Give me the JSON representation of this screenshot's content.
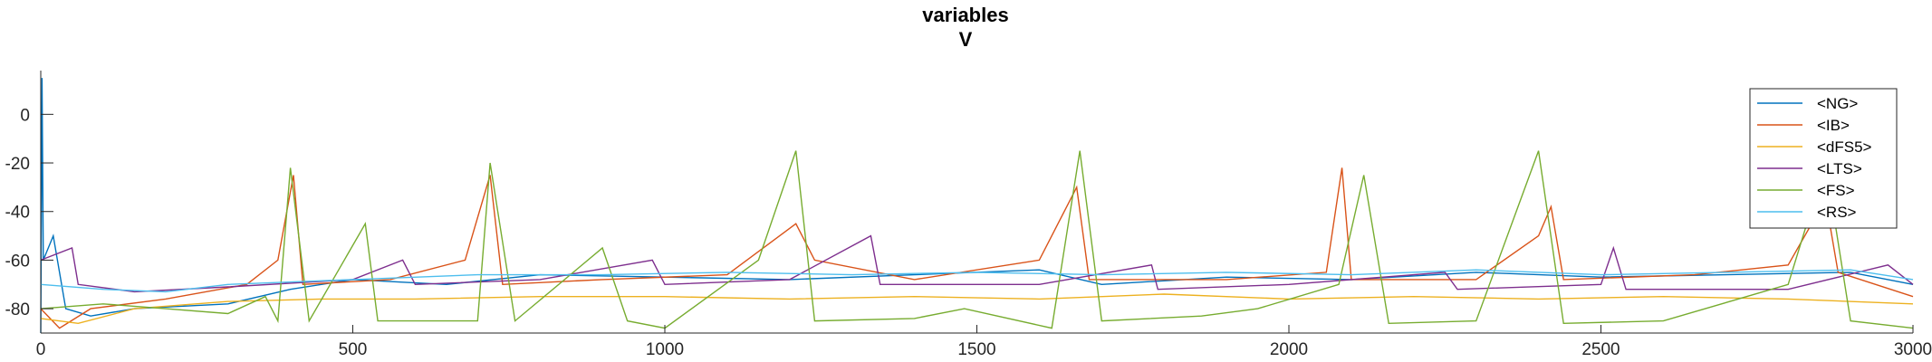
{
  "chart_data": {
    "type": "line",
    "title": "variables",
    "subtitle": "V",
    "xlabel": "",
    "ylabel": "",
    "xlim": [
      0,
      3000
    ],
    "ylim": [
      -90,
      18
    ],
    "x_ticks": [
      0,
      500,
      1000,
      1500,
      2000,
      2500,
      3000
    ],
    "y_ticks": [
      0,
      -20,
      -40,
      -60,
      -80
    ],
    "grid": false,
    "legend_position": "top-right",
    "series": [
      {
        "name": "<NG>",
        "color": "#0072BD",
        "points": [
          [
            0,
            -90
          ],
          [
            2,
            15
          ],
          [
            4,
            -60
          ],
          [
            20,
            -50
          ],
          [
            40,
            -80
          ],
          [
            80,
            -83
          ],
          [
            150,
            -80
          ],
          [
            300,
            -78
          ],
          [
            400,
            -72
          ],
          [
            500,
            -68
          ],
          [
            650,
            -70
          ],
          [
            800,
            -66
          ],
          [
            1000,
            -67
          ],
          [
            1200,
            -68
          ],
          [
            1400,
            -66
          ],
          [
            1600,
            -64
          ],
          [
            1700,
            -70
          ],
          [
            1900,
            -67
          ],
          [
            2100,
            -68
          ],
          [
            2300,
            -65
          ],
          [
            2500,
            -67
          ],
          [
            2700,
            -66
          ],
          [
            2900,
            -65
          ],
          [
            3000,
            -70
          ]
        ]
      },
      {
        "name": "<IB>",
        "color": "#D95319",
        "points": [
          [
            0,
            -80
          ],
          [
            30,
            -88
          ],
          [
            80,
            -80
          ],
          [
            200,
            -76
          ],
          [
            330,
            -70
          ],
          [
            380,
            -60
          ],
          [
            405,
            -25
          ],
          [
            420,
            -70
          ],
          [
            560,
            -68
          ],
          [
            680,
            -60
          ],
          [
            720,
            -25
          ],
          [
            740,
            -70
          ],
          [
            900,
            -68
          ],
          [
            1100,
            -66
          ],
          [
            1210,
            -45
          ],
          [
            1240,
            -60
          ],
          [
            1400,
            -68
          ],
          [
            1600,
            -60
          ],
          [
            1660,
            -30
          ],
          [
            1680,
            -68
          ],
          [
            1900,
            -68
          ],
          [
            2060,
            -65
          ],
          [
            2085,
            -22
          ],
          [
            2100,
            -68
          ],
          [
            2300,
            -68
          ],
          [
            2400,
            -50
          ],
          [
            2420,
            -38
          ],
          [
            2440,
            -68
          ],
          [
            2650,
            -66
          ],
          [
            2800,
            -62
          ],
          [
            2860,
            -35
          ],
          [
            2880,
            -65
          ],
          [
            3000,
            -75
          ]
        ]
      },
      {
        "name": "<dFS5>",
        "color": "#EDB120",
        "points": [
          [
            0,
            -84
          ],
          [
            60,
            -86
          ],
          [
            150,
            -80
          ],
          [
            300,
            -77
          ],
          [
            450,
            -76
          ],
          [
            600,
            -76
          ],
          [
            800,
            -75
          ],
          [
            1000,
            -75
          ],
          [
            1200,
            -76
          ],
          [
            1400,
            -75
          ],
          [
            1600,
            -76
          ],
          [
            1800,
            -74
          ],
          [
            2000,
            -76
          ],
          [
            2200,
            -75
          ],
          [
            2400,
            -76
          ],
          [
            2600,
            -75
          ],
          [
            2800,
            -76
          ],
          [
            3000,
            -78
          ]
        ]
      },
      {
        "name": "<LTS>",
        "color": "#7E2F8E",
        "points": [
          [
            0,
            -60
          ],
          [
            50,
            -55
          ],
          [
            60,
            -70
          ],
          [
            150,
            -73
          ],
          [
            300,
            -71
          ],
          [
            500,
            -68
          ],
          [
            580,
            -60
          ],
          [
            600,
            -70
          ],
          [
            800,
            -68
          ],
          [
            980,
            -60
          ],
          [
            1000,
            -70
          ],
          [
            1200,
            -68
          ],
          [
            1330,
            -50
          ],
          [
            1345,
            -70
          ],
          [
            1600,
            -70
          ],
          [
            1780,
            -62
          ],
          [
            1790,
            -72
          ],
          [
            2000,
            -70
          ],
          [
            2250,
            -65
          ],
          [
            2270,
            -72
          ],
          [
            2500,
            -70
          ],
          [
            2520,
            -55
          ],
          [
            2540,
            -72
          ],
          [
            2800,
            -72
          ],
          [
            2960,
            -62
          ],
          [
            3000,
            -70
          ]
        ]
      },
      {
        "name": "<FS>",
        "color": "#77AC30",
        "points": [
          [
            0,
            -80
          ],
          [
            100,
            -78
          ],
          [
            200,
            -80
          ],
          [
            300,
            -82
          ],
          [
            360,
            -75
          ],
          [
            380,
            -85
          ],
          [
            400,
            -22
          ],
          [
            430,
            -85
          ],
          [
            520,
            -45
          ],
          [
            540,
            -85
          ],
          [
            700,
            -85
          ],
          [
            720,
            -20
          ],
          [
            760,
            -85
          ],
          [
            900,
            -55
          ],
          [
            940,
            -85
          ],
          [
            1000,
            -88
          ],
          [
            1150,
            -60
          ],
          [
            1210,
            -15
          ],
          [
            1240,
            -85
          ],
          [
            1400,
            -84
          ],
          [
            1480,
            -80
          ],
          [
            1620,
            -88
          ],
          [
            1665,
            -15
          ],
          [
            1700,
            -85
          ],
          [
            1860,
            -83
          ],
          [
            1950,
            -80
          ],
          [
            2080,
            -70
          ],
          [
            2120,
            -25
          ],
          [
            2160,
            -86
          ],
          [
            2300,
            -85
          ],
          [
            2400,
            -15
          ],
          [
            2440,
            -86
          ],
          [
            2600,
            -85
          ],
          [
            2800,
            -70
          ],
          [
            2860,
            -20
          ],
          [
            2900,
            -85
          ],
          [
            3000,
            -88
          ]
        ]
      },
      {
        "name": "<RS>",
        "color": "#4DBEEE",
        "points": [
          [
            0,
            -70
          ],
          [
            100,
            -72
          ],
          [
            200,
            -73
          ],
          [
            300,
            -70
          ],
          [
            500,
            -68
          ],
          [
            700,
            -66
          ],
          [
            900,
            -66
          ],
          [
            1100,
            -65
          ],
          [
            1300,
            -66
          ],
          [
            1500,
            -65
          ],
          [
            1700,
            -66
          ],
          [
            1900,
            -65
          ],
          [
            2100,
            -66
          ],
          [
            2300,
            -64
          ],
          [
            2500,
            -66
          ],
          [
            2700,
            -65
          ],
          [
            2900,
            -64
          ],
          [
            3000,
            -68
          ]
        ]
      }
    ]
  }
}
